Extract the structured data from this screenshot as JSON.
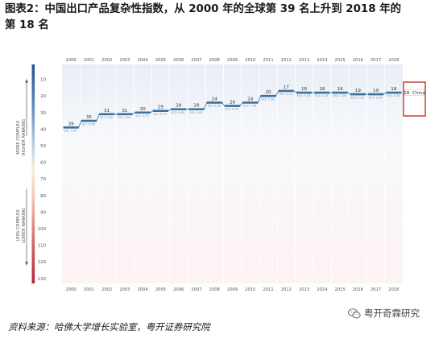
{
  "title": {
    "line1": "图表2：中国出口产品复杂性指数，从 2000 年的全球第 39 名上升到 2018 年的",
    "line2": "第 18 名"
  },
  "source": "资料来源：哈佛大学增长实验室，粤开证券研究院",
  "watermark": "粤开奇霖研究",
  "chart_data": {
    "type": "line",
    "x": [
      2000,
      2001,
      2002,
      2003,
      2004,
      2005,
      2006,
      2007,
      2008,
      2009,
      2010,
      2011,
      2012,
      2013,
      2014,
      2015,
      2016,
      2017,
      2018
    ],
    "series": [
      {
        "values": [
          39,
          35,
          31,
          31,
          30,
          29,
          28,
          28,
          24,
          26,
          24,
          20,
          17,
          18,
          18,
          18,
          19,
          19,
          18
        ],
        "eci": [
          "ECI: 0.44",
          "ECI: 0.56",
          "ECI: 0.62",
          "ECI: 0.64",
          "ECI: 0.70",
          "ECI: 0.75",
          "ECI: 0.80",
          "ECI: 0.81",
          "ECI: 0.96",
          "ECI: 0.90",
          "ECI: 1.00",
          "ECI: 1.08",
          "ECI: 1.14",
          "ECI: 1.16",
          "ECI: 1.15",
          "ECI: 1.16",
          "ECI: 1.25",
          "ECI: 1.20",
          "ECI: 1.24"
        ]
      }
    ],
    "y_ticks": [
      10,
      20,
      30,
      40,
      50,
      60,
      70,
      80,
      90,
      100,
      110,
      120,
      130
    ],
    "ylim": [
      1,
      133
    ],
    "y_inverted": true,
    "end_label": "18. China",
    "upper_side_label": [
      "MORE COMPLEX",
      "HIGHER RANKING"
    ],
    "lower_side_label": [
      "LESS COMPLEX",
      "LOWER RANKING"
    ],
    "colors": {
      "line": "#3a6f9e",
      "marker": "#2c5c8a",
      "highlight_box": "#c8302c",
      "scale_top": "#27548a",
      "scale_bottom": "#b52232"
    },
    "grid": false
  }
}
